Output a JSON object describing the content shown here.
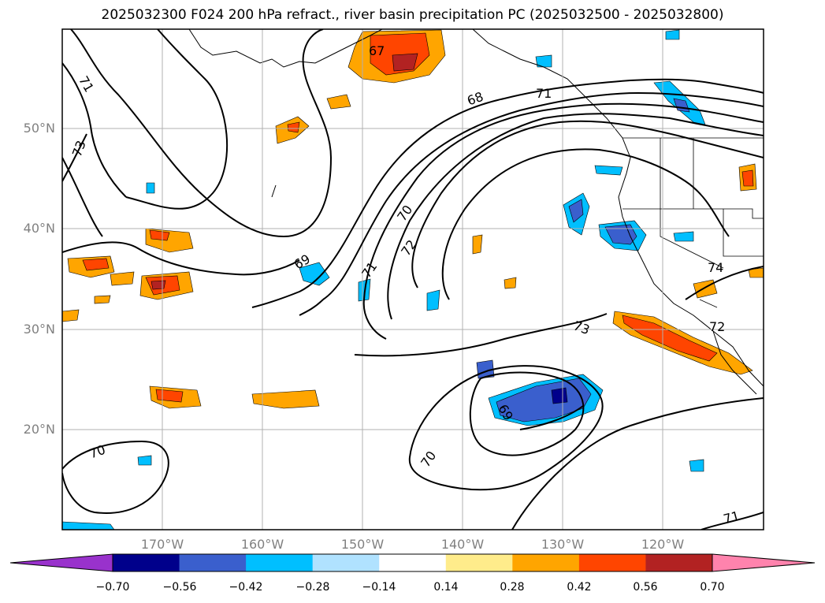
{
  "title": "2025032300 F024 200 hPa refract., river basin precipitation PC (2025032500 - 2025032800)",
  "lat_labels": [
    "50°N",
    "40°N",
    "30°N",
    "20°N"
  ],
  "lon_labels": [
    "170°W",
    "160°W",
    "150°W",
    "140°W",
    "130°W",
    "120°W"
  ],
  "contour_labels": [
    "67",
    "71",
    "73",
    "68",
    "70",
    "72",
    "69",
    "71",
    "70",
    "73",
    "70",
    "71",
    "72",
    "74",
    "69",
    "71"
  ],
  "colorbar": {
    "ticks": [
      "−0.70",
      "−0.56",
      "−0.42",
      "−0.28",
      "−0.14",
      "0.14",
      "0.28",
      "0.42",
      "0.56",
      "0.70"
    ],
    "colors": [
      "#9932cc",
      "#00008b",
      "#3a5fcd",
      "#00bfff",
      "#b0e2ff",
      "#ffffff",
      "#ffec8b",
      "#ffa500",
      "#ff4500",
      "#b22222",
      "#ff83ad"
    ]
  },
  "map": {
    "lon_range": [
      -180,
      -110
    ],
    "lat_range": [
      10,
      60
    ],
    "fill_colors": {
      "orange": "#ffa500",
      "red": "#ff4500",
      "darkred": "#b22222",
      "yellow": "#ffec8b",
      "skyblue": "#00bfff",
      "lightblue": "#b0e2ff",
      "royal": "#3a5fcd",
      "navy": "#00008b"
    }
  }
}
